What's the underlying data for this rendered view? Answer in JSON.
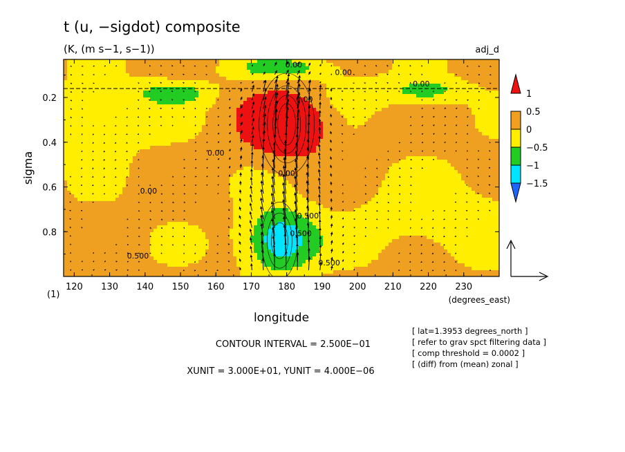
{
  "chart_data": {
    "type": "heatmap",
    "title": "t (u, −sigdot) composite",
    "subtitle": "(K, (m s−1, s−1))",
    "corner_label": "adj_d",
    "xlabel": "longitude",
    "ylabel": "sigma",
    "x_units": "(degrees_east)",
    "y_units": "(1)",
    "xlim": [
      117,
      240
    ],
    "ylim": [
      1.0,
      0.03
    ],
    "y_inverted": true,
    "x_ticks": [
      120,
      130,
      140,
      150,
      160,
      170,
      180,
      190,
      200,
      210,
      220,
      230
    ],
    "y_ticks": [
      0.2,
      0.4,
      0.6,
      0.8
    ],
    "x_tick_labels": [
      "120",
      "130",
      "140",
      "150",
      "160",
      "170",
      "180",
      "190",
      "200",
      "210",
      "220",
      "230"
    ],
    "y_tick_labels": [
      "0.2",
      "0.4",
      "0.6",
      "0.8"
    ],
    "colorbar": {
      "levels": [
        -1.5,
        -1,
        -0.5,
        0,
        0.5,
        1
      ],
      "labels": [
        "1",
        "0.5",
        "0",
        "−0.5",
        "−1",
        "−1.5"
      ],
      "colors": [
        "#1e64ff",
        "#00e5ff",
        "#22cc22",
        "#ffee00",
        "#f0a020",
        "#ee1111"
      ]
    },
    "contour_labels": [
      "0.00",
      "0.00",
      "0.00",
      "0.00",
      "0.00",
      "0.00",
      "0.500",
      "0.500",
      "0.500",
      "0.500",
      "0.00"
    ],
    "features": [
      {
        "sign": "warm",
        "lon": 180,
        "sigma": 0.32,
        "peak": 1.2
      },
      {
        "sign": "cold",
        "lon": 178,
        "sigma": 0.84,
        "peak": -1.6
      },
      {
        "sign": "cold",
        "lon": 180,
        "sigma": 0.07,
        "peak": -0.9
      },
      {
        "sign": "cold",
        "lon": 148,
        "sigma": 0.18,
        "peak": -0.9
      },
      {
        "sign": "cold",
        "lon": 220,
        "sigma": 0.17,
        "peak": -0.7
      }
    ],
    "contour_interval_text": "CONTOUR INTERVAL = 2.500E−01",
    "unit_text": "XUNIT = 3.000E+01, YUNIT = 4.000E−06",
    "notes": [
      "[ lat=1.3953 degrees_north ]",
      "[ refer to grav spct filtering data ]",
      "[ comp threshold = 0.0002 ]",
      "[ (diff) from (mean) zonal ]"
    ]
  }
}
